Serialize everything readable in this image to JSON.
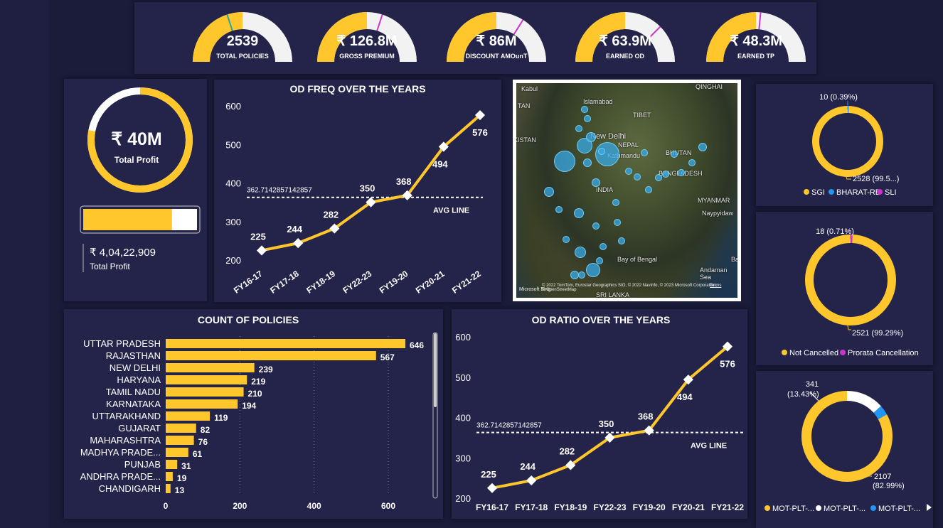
{
  "kpis": [
    {
      "value": "2539",
      "label": "TOTAL POLICIES",
      "fraction": 0.4,
      "marker_color": "#26a69a"
    },
    {
      "value": "₹ 126.8M",
      "label": "GROSS PREMIUM",
      "fraction": 0.6,
      "marker_color": "#cc33cc"
    },
    {
      "value": "₹ 86M",
      "label": "DISCOUNT AMOunT",
      "fraction": 0.68,
      "marker_color": "#cc33cc"
    },
    {
      "value": "₹ 63.9M",
      "label": "EARNED OD",
      "fraction": 0.75,
      "marker_color": "#cc33cc"
    },
    {
      "value": "₹ 48.3M",
      "label": "EARNED TP",
      "fraction": 0.53,
      "marker_color": "#cc33cc"
    }
  ],
  "profit": {
    "donut_value": "₹ 40M",
    "donut_label": "Total Profit",
    "donut_fraction": 0.78,
    "bar_fraction": 0.78,
    "card_value": "₹ 4,04,22,909",
    "card_label": "Total Profit"
  },
  "colors": {
    "accent": "#ffc72c",
    "panel": "#24234a",
    "background": "#1b1b3a",
    "blue": "#2196f3",
    "magenta": "#cc33cc",
    "white": "#ffffff"
  },
  "map": {
    "labels": [
      "Kabul",
      "Islamabad",
      "TAN",
      "KISTAN",
      "New Delhi",
      "TIBET",
      "NEPAL",
      "Kathmandu",
      "BHUTAN",
      "BANGLADESH",
      "INDIA",
      "MYANMAR",
      "Naypyidaw",
      "Bay of Bengal",
      "Andaman Sea",
      "SRI LANKA",
      "QINGHAI",
      "Ba"
    ],
    "attribution": "© 2022 TomTom, Eurostar Geographics SIO, © 2022 NavInfo, © 2023 Microsoft Corporation, © OpenStreetMap",
    "terms": "Terms",
    "bing": "Microsoft Bing"
  },
  "donuts": [
    {
      "legend": [
        "SGI",
        "BHARAT-RE",
        "SLI"
      ],
      "top_label": "10 (0.39%)",
      "bottom_label": "2528 (99.5...)"
    },
    {
      "legend": [
        "Not Cancelled",
        "Prorata Cancellation"
      ],
      "top_label": "18 (0.71%)",
      "bottom_label": "2521 (99.29%)"
    },
    {
      "legend": [
        "MOT-PLT-...",
        "MOT-PLT-...",
        "MOT-PLT-..."
      ],
      "top_label_1": "341",
      "top_label_2": "(13.43%)",
      "bottom_label_1": "2107",
      "bottom_label_2": "(82.99%)"
    }
  ],
  "chart_data": [
    {
      "type": "line",
      "title": "OD FREQ OVER THE YEARS",
      "categories": [
        "FY16-17",
        "FY17-18",
        "FY18-19",
        "FY22-23",
        "FY19-20",
        "FY20-21",
        "FY21-22"
      ],
      "values": [
        225,
        244,
        282,
        350,
        368,
        494,
        576
      ],
      "ylim": [
        200,
        600
      ],
      "yticks": [
        200,
        300,
        400,
        500,
        600
      ],
      "avg_line": {
        "value": 362.7142857142857,
        "value_label": "362.7142857142857",
        "label": "AVG LINE"
      },
      "grid": false
    },
    {
      "type": "bar",
      "orientation": "horizontal",
      "title": "COUNT OF POLICIES",
      "categories": [
        "UTTAR PRADESH",
        "RAJASTHAN",
        "NEW DELHI",
        "HARYANA",
        "TAMIL NADU",
        "KARNATAKA",
        "UTTARAKHAND",
        "GUJARAT",
        "MAHARASHTRA",
        "MADHYA PRADE...",
        "PUNJAB",
        "ANDHRA PRADE...",
        "CHANDIGARH"
      ],
      "values": [
        646,
        567,
        239,
        219,
        210,
        194,
        119,
        82,
        76,
        61,
        31,
        19,
        13
      ],
      "xlim": [
        0,
        700
      ],
      "xticks": [
        0,
        200,
        400,
        600
      ],
      "grid": true
    },
    {
      "type": "line",
      "title": "OD RATIO OVER THE YEARS",
      "categories": [
        "FY16-17",
        "FY17-18",
        "FY18-19",
        "FY22-23",
        "FY19-20",
        "FY20-21",
        "FY21-22"
      ],
      "values": [
        225,
        244,
        282,
        350,
        368,
        494,
        576
      ],
      "ylim": [
        200,
        600
      ],
      "yticks": [
        200,
        300,
        400,
        500,
        600
      ],
      "avg_line": {
        "value": 362.7142857142857,
        "value_label": "362.7142857142857",
        "label": "AVG LINE"
      },
      "grid": false
    },
    {
      "type": "pie",
      "style": "donut",
      "labels": [
        "SGI",
        "BHARAT-RE",
        "SLI"
      ],
      "values": [
        2528,
        10,
        1
      ],
      "colors": [
        "#ffc72c",
        "#2196f3",
        "#cc33cc"
      ]
    },
    {
      "type": "pie",
      "style": "donut",
      "labels": [
        "Not Cancelled",
        "Prorata Cancellation"
      ],
      "values": [
        2521,
        18
      ],
      "colors": [
        "#ffc72c",
        "#cc33cc"
      ]
    },
    {
      "type": "pie",
      "style": "donut",
      "labels": [
        "MOT-PLT-...",
        "MOT-PLT-...",
        "MOT-PLT-..."
      ],
      "values": [
        2107,
        341,
        91
      ],
      "colors": [
        "#ffc72c",
        "#ffffff",
        "#2196f3"
      ]
    }
  ]
}
